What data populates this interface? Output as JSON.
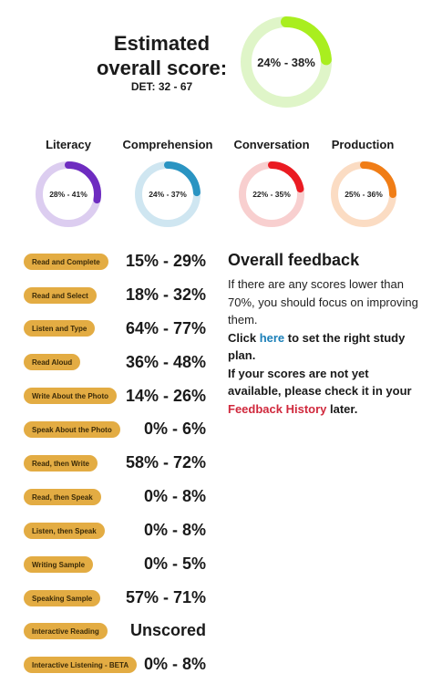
{
  "overall": {
    "title": "Estimated overall score:",
    "det": "DET: 32 - 67",
    "score": "24% - 38%",
    "progress": 0.24,
    "color": "#a9ee1f",
    "track": "#dff5c8"
  },
  "skills": [
    {
      "name": "Literacy",
      "score": "28% - 41%",
      "progress": 0.28,
      "color": "#6e2cc0",
      "track": "#dccdf0"
    },
    {
      "name": "Comprehension",
      "score": "24% - 37%",
      "progress": 0.24,
      "color": "#2a94c2",
      "track": "#cfe6f1"
    },
    {
      "name": "Conversation",
      "score": "22% - 35%",
      "progress": 0.22,
      "color": "#ea1b22",
      "track": "#f8cfcf"
    },
    {
      "name": "Production",
      "score": "25% - 36%",
      "progress": 0.25,
      "color": "#f07d16",
      "track": "#fbdcc3"
    }
  ],
  "tasks": [
    {
      "name": "Read and Complete",
      "score": "15% - 29%"
    },
    {
      "name": "Read and Select",
      "score": "18% - 32%"
    },
    {
      "name": "Listen and Type",
      "score": "64% - 77%"
    },
    {
      "name": "Read Aloud",
      "score": "36% - 48%"
    },
    {
      "name": "Write About the Photo",
      "score": "14% - 26%"
    },
    {
      "name": "Speak About the Photo",
      "score": "0% - 6%"
    },
    {
      "name": "Read, then Write",
      "score": "58% - 72%"
    },
    {
      "name": "Read, then Speak",
      "score": "0% - 8%"
    },
    {
      "name": "Listen, then Speak",
      "score": "0% - 8%"
    },
    {
      "name": "Writing Sample",
      "score": "0% - 5%"
    },
    {
      "name": "Speaking Sample",
      "score": "57% - 71%"
    },
    {
      "name": "Interactive Reading",
      "score": "Unscored"
    },
    {
      "name": "Interactive Listening - BETA",
      "score": "0% - 8%"
    }
  ],
  "feedback": {
    "title": "Overall feedback",
    "body": "If there are any scores lower than 70%, you should focus on improving them.",
    "click_prefix": "Click ",
    "here_link": "here",
    "click_suffix": " to set the right study plan.",
    "note_prefix": "If your scores are not yet available, please check it in your ",
    "history_link": "Feedback History",
    "note_suffix": " later."
  }
}
